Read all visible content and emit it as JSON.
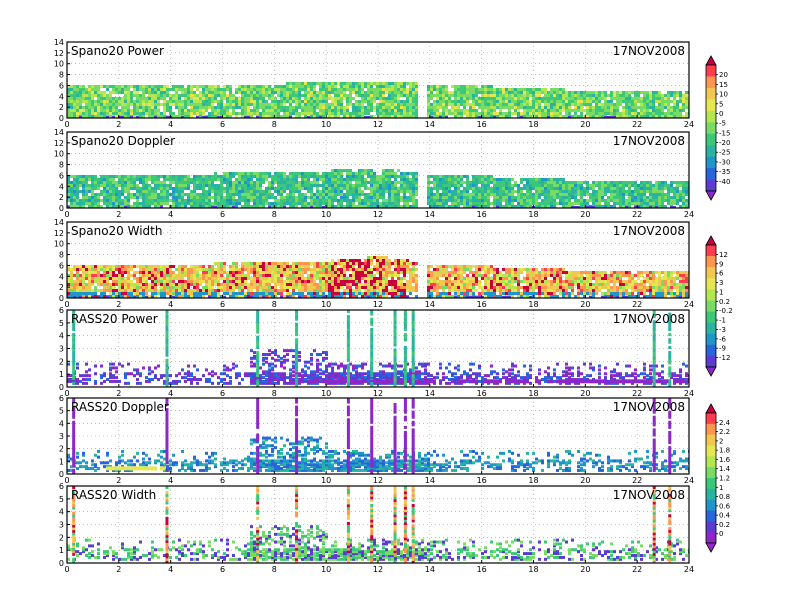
{
  "date_label": "17NOV2008",
  "x_ticks": [
    "0",
    "2",
    "4",
    "6",
    "8",
    "10",
    "12",
    "14",
    "16",
    "18",
    "20",
    "22",
    "24"
  ],
  "panels": [
    {
      "title": "Spano20  Power",
      "y_ticks": [
        "0",
        "2",
        "4",
        "6",
        "8",
        "10",
        "12",
        "14"
      ]
    },
    {
      "title": "Spano20  Doppler",
      "y_ticks": [
        "0",
        "2",
        "4",
        "6",
        "8",
        "10",
        "12",
        "14"
      ]
    },
    {
      "title": "Spano20  Width",
      "y_ticks": [
        "0",
        "2",
        "4",
        "6",
        "8",
        "10",
        "12",
        "14"
      ]
    },
    {
      "title": "RASS20  Power",
      "y_ticks": [
        "0",
        "1",
        "2",
        "3",
        "4",
        "5",
        "6"
      ]
    },
    {
      "title": "RASS20  Doppler",
      "y_ticks": [
        "0",
        "1",
        "2",
        "3",
        "4",
        "5",
        "6"
      ]
    },
    {
      "title": "RASS20  Width",
      "y_ticks": [
        "0",
        "1",
        "2",
        "3",
        "4",
        "5",
        "6"
      ]
    }
  ],
  "colorbars": [
    {
      "labels": [
        "20",
        "15",
        "10",
        "5",
        "0",
        "-5",
        "-15",
        "-20",
        "-25",
        "-30",
        "-35",
        "-40"
      ],
      "colors": [
        "#c8003c",
        "#ff3c50",
        "#ff9650",
        "#f0c850",
        "#e6e650",
        "#b4e650",
        "#78dc64",
        "#3cc878",
        "#28b4a0",
        "#1e96c8",
        "#2864dc",
        "#5a3cd2",
        "#8c28c8"
      ]
    },
    {
      "labels": [
        "12",
        "9",
        "6",
        "3",
        "1",
        "0.2",
        "-0.2",
        "-1",
        "-3",
        "-6",
        "-9",
        "-12"
      ],
      "colors": [
        "#c8003c",
        "#ff3c50",
        "#ff9650",
        "#f0c850",
        "#e6e650",
        "#b4e650",
        "#78dc64",
        "#3cc878",
        "#28b4a0",
        "#1e96c8",
        "#2864dc",
        "#5a3cd2",
        "#8c28c8"
      ]
    },
    {
      "labels": [
        "2.4",
        "2.2",
        "2",
        "1.8",
        "1.6",
        "1.4",
        "1.2",
        "1",
        "0.8",
        "0.6",
        "0.4",
        "0.2",
        "0"
      ],
      "colors": [
        "#c8003c",
        "#ff3c50",
        "#ff9650",
        "#f0c850",
        "#e6e650",
        "#b4e650",
        "#78dc64",
        "#3cc878",
        "#28b4a0",
        "#1e96c8",
        "#2864dc",
        "#5a3cd2",
        "#8c28c8",
        "#9628c8"
      ]
    }
  ],
  "chart_data": [
    {
      "type": "heatmap",
      "title": "Spano20  Power",
      "xlim": [
        0,
        24
      ],
      "ylim": [
        0,
        14
      ],
      "x_ticks": [
        0,
        2,
        4,
        6,
        8,
        10,
        12,
        14,
        16,
        18,
        20,
        22,
        24
      ],
      "y_ticks": [
        0,
        2,
        4,
        6,
        8,
        10,
        12,
        14
      ],
      "grid": true,
      "annotation": "17NOV2008",
      "echo_top": {
        "x": [
          0,
          4,
          8,
          10,
          12,
          14,
          16,
          18,
          20,
          22,
          24
        ],
        "top": [
          6.0,
          6.0,
          6.0,
          6.4,
          6.6,
          6.0,
          5.6,
          5.2,
          4.8,
          4.8,
          4.6
        ]
      },
      "dominant_values": [
        -15,
        -5,
        0
      ]
    },
    {
      "type": "heatmap",
      "title": "Spano20  Doppler",
      "xlim": [
        0,
        24
      ],
      "ylim": [
        0,
        14
      ],
      "x_ticks": [
        0,
        2,
        4,
        6,
        8,
        10,
        12,
        14,
        16,
        18,
        20,
        22,
        24
      ],
      "y_ticks": [
        0,
        2,
        4,
        6,
        8,
        10,
        12,
        14
      ],
      "grid": true,
      "annotation": "17NOV2008",
      "echo_top": {
        "x": [
          0,
          4,
          8,
          10,
          12,
          14,
          16,
          18,
          20,
          22,
          24
        ],
        "top": [
          6.0,
          6.0,
          6.2,
          6.6,
          7.0,
          6.0,
          5.6,
          5.2,
          4.8,
          4.8,
          4.6
        ]
      },
      "dominant_values": [
        -1,
        -0.2,
        0.2
      ]
    },
    {
      "type": "heatmap",
      "title": "Spano20  Width",
      "xlim": [
        0,
        24
      ],
      "ylim": [
        0,
        14
      ],
      "x_ticks": [
        0,
        2,
        4,
        6,
        8,
        10,
        12,
        14,
        16,
        18,
        20,
        22,
        24
      ],
      "y_ticks": [
        0,
        2,
        4,
        6,
        8,
        10,
        12,
        14
      ],
      "grid": true,
      "annotation": "17NOV2008",
      "echo_top": {
        "x": [
          0,
          4,
          8,
          10,
          12,
          14,
          16,
          18,
          20,
          22,
          24
        ],
        "top": [
          6.0,
          6.0,
          6.2,
          6.6,
          7.4,
          6.0,
          5.6,
          5.2,
          4.8,
          4.8,
          4.6
        ]
      },
      "dominant_values": [
        0.8,
        1.4,
        2.2
      ]
    },
    {
      "type": "heatmap",
      "title": "RASS20  Power",
      "xlim": [
        0,
        24
      ],
      "ylim": [
        0,
        6
      ],
      "x_ticks": [
        0,
        2,
        4,
        6,
        8,
        10,
        12,
        14,
        16,
        18,
        20,
        22,
        24
      ],
      "y_ticks": [
        0,
        1,
        2,
        3,
        4,
        5,
        6
      ],
      "grid": true,
      "annotation": "17NOV2008",
      "vertical_streaks_x": [
        0.2,
        3.8,
        7.3,
        8.8,
        10.8,
        11.7,
        12.6,
        13.0,
        13.3,
        22.6,
        23.2
      ]
    },
    {
      "type": "heatmap",
      "title": "RASS20  Doppler",
      "xlim": [
        0,
        24
      ],
      "ylim": [
        0,
        6
      ],
      "x_ticks": [
        0,
        2,
        4,
        6,
        8,
        10,
        12,
        14,
        16,
        18,
        20,
        22,
        24
      ],
      "y_ticks": [
        0,
        1,
        2,
        3,
        4,
        5,
        6
      ],
      "grid": true,
      "annotation": "17NOV2008",
      "vertical_streaks_x": [
        0.2,
        3.8,
        7.3,
        8.8,
        10.8,
        11.7,
        12.6,
        13.0,
        13.3,
        22.6,
        23.2
      ]
    },
    {
      "type": "heatmap",
      "title": "RASS20  Width",
      "xlim": [
        0,
        24
      ],
      "ylim": [
        0,
        6
      ],
      "x_ticks": [
        0,
        2,
        4,
        6,
        8,
        10,
        12,
        14,
        16,
        18,
        20,
        22,
        24
      ],
      "y_ticks": [
        0,
        1,
        2,
        3,
        4,
        5,
        6
      ],
      "grid": true,
      "annotation": "17NOV2008",
      "vertical_streaks_x": [
        0.2,
        3.8,
        7.3,
        8.8,
        10.8,
        11.7,
        12.6,
        13.0,
        13.3,
        22.6,
        23.2
      ]
    }
  ]
}
